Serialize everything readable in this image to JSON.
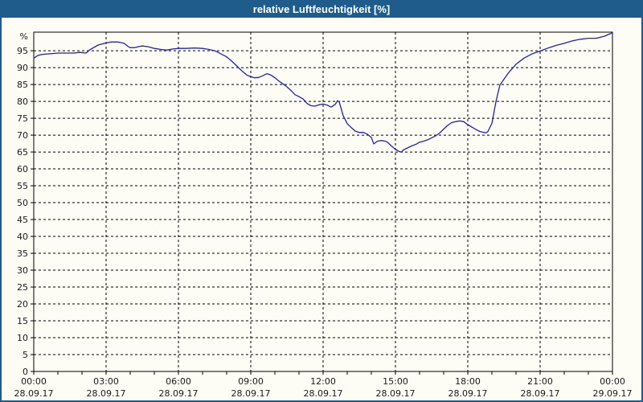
{
  "window": {
    "title": "relative Luftfeuchtigkeit [%]"
  },
  "colors": {
    "titlebar": "#1F5C8B",
    "window_border": "#1E5C8C",
    "background": "#FDFDF6",
    "line": "#2020C0",
    "grid": "#000000",
    "frame": "#000000",
    "tick_label": "#1A1A1A",
    "title_text": "#FFFFFF"
  },
  "chart_data": {
    "type": "line",
    "title": "relative Luftfeuchtigkeit [%]",
    "ylabel": "%",
    "xlabel": "",
    "ylim": [
      0,
      100.5
    ],
    "xlim_hours": [
      0,
      24
    ],
    "grid": true,
    "legend": "none",
    "y_ticks": [
      0,
      5,
      10,
      15,
      20,
      25,
      30,
      35,
      40,
      45,
      50,
      55,
      60,
      65,
      70,
      75,
      80,
      85,
      90,
      95
    ],
    "y_unit_label": "%",
    "x_ticks": [
      {
        "hour": 0,
        "time": "00:00",
        "date": "28.09.17"
      },
      {
        "hour": 3,
        "time": "03:00",
        "date": "28.09.17"
      },
      {
        "hour": 6,
        "time": "06:00",
        "date": "28.09.17"
      },
      {
        "hour": 9,
        "time": "09:00",
        "date": "28.09.17"
      },
      {
        "hour": 12,
        "time": "12:00",
        "date": "28.09.17"
      },
      {
        "hour": 15,
        "time": "15:00",
        "date": "28.09.17"
      },
      {
        "hour": 18,
        "time": "18:00",
        "date": "28.09.17"
      },
      {
        "hour": 21,
        "time": "21:00",
        "date": "28.09.17"
      },
      {
        "hour": 24,
        "time": "00:00",
        "date": "29.09.17"
      }
    ],
    "minor_x_tick_every_hours": 1,
    "series": [
      {
        "name": "relative Luftfeuchtigkeit",
        "unit": "%",
        "color": "#2020C0",
        "points": [
          [
            0.0,
            92.8
          ],
          [
            0.17,
            93.6
          ],
          [
            0.33,
            93.9
          ],
          [
            0.67,
            94.1
          ],
          [
            1.0,
            94.3
          ],
          [
            1.33,
            94.3
          ],
          [
            1.67,
            94.3
          ],
          [
            1.9,
            94.5
          ],
          [
            2.17,
            94.3
          ],
          [
            2.33,
            95.3
          ],
          [
            2.67,
            96.7
          ],
          [
            3.0,
            97.3
          ],
          [
            3.2,
            97.6
          ],
          [
            3.5,
            97.6
          ],
          [
            3.75,
            97.2
          ],
          [
            3.9,
            96.3
          ],
          [
            4.0,
            95.9
          ],
          [
            4.17,
            95.9
          ],
          [
            4.33,
            96.2
          ],
          [
            4.5,
            96.4
          ],
          [
            4.75,
            96.2
          ],
          [
            5.0,
            95.7
          ],
          [
            5.25,
            95.4
          ],
          [
            5.5,
            95.2
          ],
          [
            5.75,
            95.5
          ],
          [
            6.0,
            95.7
          ],
          [
            6.33,
            95.7
          ],
          [
            6.67,
            95.8
          ],
          [
            7.0,
            95.7
          ],
          [
            7.25,
            95.4
          ],
          [
            7.5,
            95.0
          ],
          [
            7.67,
            94.4
          ],
          [
            7.83,
            93.8
          ],
          [
            8.0,
            93.2
          ],
          [
            8.17,
            92.2
          ],
          [
            8.33,
            91.1
          ],
          [
            8.5,
            89.9
          ],
          [
            8.67,
            88.8
          ],
          [
            8.83,
            87.8
          ],
          [
            9.0,
            87.3
          ],
          [
            9.17,
            87.0
          ],
          [
            9.33,
            87.1
          ],
          [
            9.5,
            87.6
          ],
          [
            9.67,
            88.2
          ],
          [
            9.83,
            87.8
          ],
          [
            10.0,
            87.0
          ],
          [
            10.17,
            86.0
          ],
          [
            10.33,
            85.2
          ],
          [
            10.5,
            84.3
          ],
          [
            10.67,
            83.2
          ],
          [
            10.83,
            82.0
          ],
          [
            11.0,
            81.4
          ],
          [
            11.17,
            80.7
          ],
          [
            11.33,
            79.4
          ],
          [
            11.5,
            78.7
          ],
          [
            11.67,
            78.6
          ],
          [
            11.83,
            79.0
          ],
          [
            12.0,
            79.2
          ],
          [
            12.17,
            78.9
          ],
          [
            12.33,
            78.3
          ],
          [
            12.5,
            79.1
          ],
          [
            12.6,
            80.2
          ],
          [
            12.67,
            79.8
          ],
          [
            12.83,
            75.8
          ],
          [
            13.0,
            73.4
          ],
          [
            13.17,
            72.2
          ],
          [
            13.33,
            71.2
          ],
          [
            13.5,
            70.8
          ],
          [
            13.67,
            70.8
          ],
          [
            13.83,
            70.3
          ],
          [
            14.0,
            69.3
          ],
          [
            14.1,
            67.4
          ],
          [
            14.25,
            68.2
          ],
          [
            14.42,
            68.4
          ],
          [
            14.58,
            68.2
          ],
          [
            14.67,
            67.9
          ],
          [
            14.83,
            66.8
          ],
          [
            15.0,
            65.8
          ],
          [
            15.17,
            65.1
          ],
          [
            15.25,
            65.0
          ],
          [
            15.33,
            65.6
          ],
          [
            15.5,
            66.2
          ],
          [
            15.67,
            66.8
          ],
          [
            15.83,
            67.2
          ],
          [
            16.0,
            67.9
          ],
          [
            16.17,
            68.2
          ],
          [
            16.33,
            68.6
          ],
          [
            16.5,
            69.2
          ],
          [
            16.67,
            69.8
          ],
          [
            16.83,
            70.6
          ],
          [
            17.0,
            71.8
          ],
          [
            17.17,
            72.9
          ],
          [
            17.33,
            73.7
          ],
          [
            17.5,
            74.0
          ],
          [
            17.67,
            74.2
          ],
          [
            17.83,
            74.0
          ],
          [
            18.0,
            73.1
          ],
          [
            18.17,
            72.4
          ],
          [
            18.33,
            71.7
          ],
          [
            18.5,
            71.1
          ],
          [
            18.67,
            70.8
          ],
          [
            18.75,
            70.7
          ],
          [
            18.83,
            71.0
          ],
          [
            19.0,
            73.5
          ],
          [
            19.17,
            80.0
          ],
          [
            19.33,
            84.8
          ],
          [
            19.67,
            88.3
          ],
          [
            20.0,
            91.0
          ],
          [
            20.33,
            92.8
          ],
          [
            20.67,
            94.1
          ],
          [
            21.0,
            94.9
          ],
          [
            21.33,
            95.8
          ],
          [
            21.67,
            96.6
          ],
          [
            22.0,
            97.2
          ],
          [
            22.33,
            97.9
          ],
          [
            22.67,
            98.4
          ],
          [
            23.0,
            98.7
          ],
          [
            23.33,
            98.7
          ],
          [
            23.67,
            99.3
          ],
          [
            23.83,
            99.8
          ],
          [
            24.0,
            100.3
          ]
        ]
      }
    ]
  }
}
